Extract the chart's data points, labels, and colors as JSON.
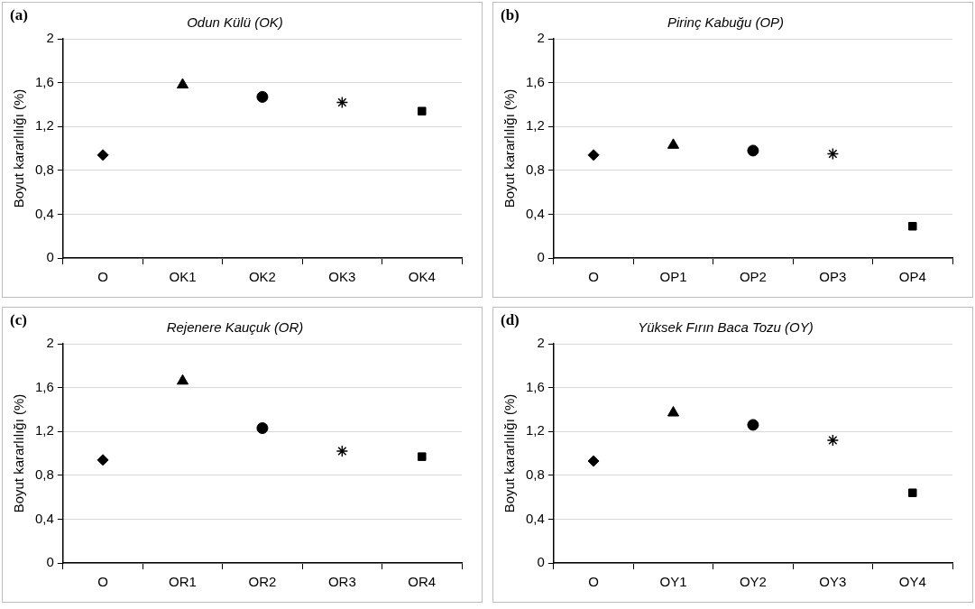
{
  "chart_data": [
    {
      "type": "scatter",
      "title": "Odun Külü (OK)",
      "ylabel": "Boyut kararlılığı (%)",
      "annotations": [
        "(a)"
      ],
      "categories": [
        "O",
        "OK1",
        "OK2",
        "OK3",
        "OK4"
      ],
      "ylim": [
        0,
        2
      ],
      "yticks": [
        {
          "value": 0,
          "label": "0"
        },
        {
          "value": 0.4,
          "label": "0,4"
        },
        {
          "value": 0.8,
          "label": "0,8"
        },
        {
          "value": 1.2,
          "label": "1,2"
        },
        {
          "value": 1.6,
          "label": "1,6"
        },
        {
          "value": 2,
          "label": "2"
        }
      ],
      "grid": "y",
      "legend": false,
      "series": [
        {
          "color": "#000000",
          "marker": "diamond",
          "x": [
            "O"
          ],
          "values": [
            0.94
          ]
        },
        {
          "color": "#000000",
          "marker": "triangle",
          "x": [
            "OK1"
          ],
          "values": [
            1.58
          ]
        },
        {
          "color": "#000000",
          "marker": "circle",
          "x": [
            "OK2"
          ],
          "values": [
            1.47
          ]
        },
        {
          "color": "#000000",
          "marker": "cross",
          "x": [
            "OK3"
          ],
          "values": [
            1.42
          ]
        },
        {
          "color": "#000000",
          "marker": "square",
          "x": [
            "OK4"
          ],
          "values": [
            1.34
          ]
        }
      ]
    },
    {
      "type": "scatter",
      "title": "Pirinç Kabuğu (OP)",
      "ylabel": "Boyut kararlılığı (%)",
      "annotations": [
        "(b)"
      ],
      "categories": [
        "O",
        "OP1",
        "OP2",
        "OP3",
        "OP4"
      ],
      "ylim": [
        0,
        2
      ],
      "yticks": [
        {
          "value": 0,
          "label": "0"
        },
        {
          "value": 0.4,
          "label": "0,4"
        },
        {
          "value": 0.8,
          "label": "0,8"
        },
        {
          "value": 1.2,
          "label": "1,2"
        },
        {
          "value": 1.6,
          "label": "1,6"
        },
        {
          "value": 2,
          "label": "2"
        }
      ],
      "grid": "y",
      "legend": false,
      "series": [
        {
          "color": "#000000",
          "marker": "diamond",
          "x": [
            "O"
          ],
          "values": [
            0.94
          ]
        },
        {
          "color": "#000000",
          "marker": "triangle",
          "x": [
            "OP1"
          ],
          "values": [
            1.03
          ]
        },
        {
          "color": "#000000",
          "marker": "circle",
          "x": [
            "OP2"
          ],
          "values": [
            0.98
          ]
        },
        {
          "color": "#000000",
          "marker": "cross",
          "x": [
            "OP3"
          ],
          "values": [
            0.95
          ]
        },
        {
          "color": "#000000",
          "marker": "square",
          "x": [
            "OP4"
          ],
          "values": [
            0.29
          ]
        }
      ]
    },
    {
      "type": "scatter",
      "title": "Rejenere Kauçuk (OR)",
      "ylabel": "Boyut kararlılığı (%)",
      "annotations": [
        "(c)"
      ],
      "categories": [
        "O",
        "OR1",
        "OR2",
        "OR3",
        "OR4"
      ],
      "ylim": [
        0,
        2
      ],
      "yticks": [
        {
          "value": 0,
          "label": "0"
        },
        {
          "value": 0.4,
          "label": "0,4"
        },
        {
          "value": 0.8,
          "label": "0,8"
        },
        {
          "value": 1.2,
          "label": "1,2"
        },
        {
          "value": 1.6,
          "label": "1,6"
        },
        {
          "value": 2,
          "label": "2"
        }
      ],
      "grid": "y",
      "legend": false,
      "series": [
        {
          "color": "#000000",
          "marker": "diamond",
          "x": [
            "O"
          ],
          "values": [
            0.94
          ]
        },
        {
          "color": "#000000",
          "marker": "triangle",
          "x": [
            "OR1"
          ],
          "values": [
            1.66
          ]
        },
        {
          "color": "#000000",
          "marker": "circle",
          "x": [
            "OR2"
          ],
          "values": [
            1.23
          ]
        },
        {
          "color": "#000000",
          "marker": "cross",
          "x": [
            "OR3"
          ],
          "values": [
            1.02
          ]
        },
        {
          "color": "#000000",
          "marker": "square",
          "x": [
            "OR4"
          ],
          "values": [
            0.97
          ]
        }
      ]
    },
    {
      "type": "scatter",
      "title": "Yüksek Fırın Baca Tozu (OY)",
      "ylabel": "Boyut kararlılığı (%)",
      "annotations": [
        "(d)"
      ],
      "categories": [
        "O",
        "OY1",
        "OY2",
        "OY3",
        "OY4"
      ],
      "ylim": [
        0,
        2
      ],
      "yticks": [
        {
          "value": 0,
          "label": "0"
        },
        {
          "value": 0.4,
          "label": "0,4"
        },
        {
          "value": 0.8,
          "label": "0,8"
        },
        {
          "value": 1.2,
          "label": "1,2"
        },
        {
          "value": 1.6,
          "label": "1,6"
        },
        {
          "value": 2,
          "label": "2"
        }
      ],
      "grid": "y",
      "legend": false,
      "series": [
        {
          "color": "#000000",
          "marker": "diamond",
          "x": [
            "O"
          ],
          "values": [
            0.93
          ]
        },
        {
          "color": "#000000",
          "marker": "triangle",
          "x": [
            "OY1"
          ],
          "values": [
            1.37
          ]
        },
        {
          "color": "#000000",
          "marker": "circle",
          "x": [
            "OY2"
          ],
          "values": [
            1.26
          ]
        },
        {
          "color": "#000000",
          "marker": "cross",
          "x": [
            "OY3"
          ],
          "values": [
            1.12
          ]
        },
        {
          "color": "#000000",
          "marker": "square",
          "x": [
            "OY4"
          ],
          "values": [
            0.64
          ]
        }
      ]
    }
  ]
}
